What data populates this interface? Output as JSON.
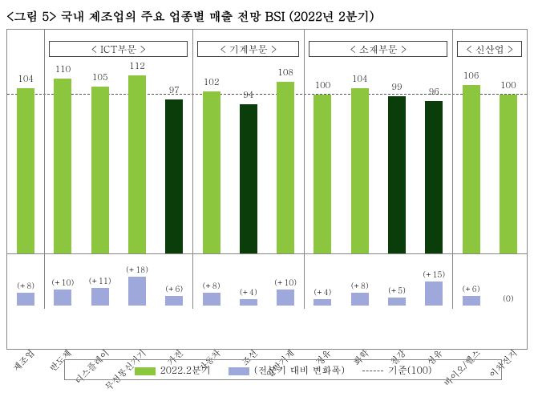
{
  "title": "<그림 5> 국내 제조업의 주요 업종별 매출 전망 BSI (2022년 2분기)",
  "chart": {
    "type": "bar",
    "baseline": 100,
    "ymax": 120,
    "colors": {
      "bar_normal": "#8cc63f",
      "bar_below": "#0b3d0b",
      "delta_bar": "#9fa8da",
      "border": "#888888",
      "baseline": "#555555"
    },
    "sections": [
      {
        "label": "< ICT부문 >",
        "start": 1,
        "end": 4
      },
      {
        "label": "< 기계부문 >",
        "start": 5,
        "end": 7
      },
      {
        "label": "< 소재부문 >",
        "start": 8,
        "end": 11
      },
      {
        "label": "< 신산업 >",
        "start": 12,
        "end": 13
      }
    ],
    "categories": [
      "제조업",
      "반도체",
      "디스플레이",
      "무선통신기기",
      "가전",
      "자동차",
      "조선",
      "일반기계",
      "정유",
      "화학",
      "철강",
      "섬유",
      "바이오/헬스",
      "이차전지"
    ],
    "values": [
      104,
      110,
      105,
      112,
      97,
      102,
      94,
      108,
      100,
      104,
      99,
      96,
      106,
      100
    ],
    "deltas": [
      "(+8)",
      "(+10)",
      "(+11)",
      "(+18)",
      "(+6)",
      "(+8)",
      "(+4)",
      "(+10)",
      "(+4)",
      "(+8)",
      "(+5)",
      "(+15)",
      "(+6)",
      "(0)"
    ],
    "delta_vals": [
      8,
      10,
      11,
      18,
      6,
      8,
      4,
      10,
      4,
      8,
      5,
      15,
      6,
      0
    ],
    "value_fontsize": 11,
    "label_fontsize": 11
  },
  "legend": {
    "series1": "2022.2분기",
    "series2": "(전분기 대비 변화폭)",
    "series3": "기준(100)"
  }
}
